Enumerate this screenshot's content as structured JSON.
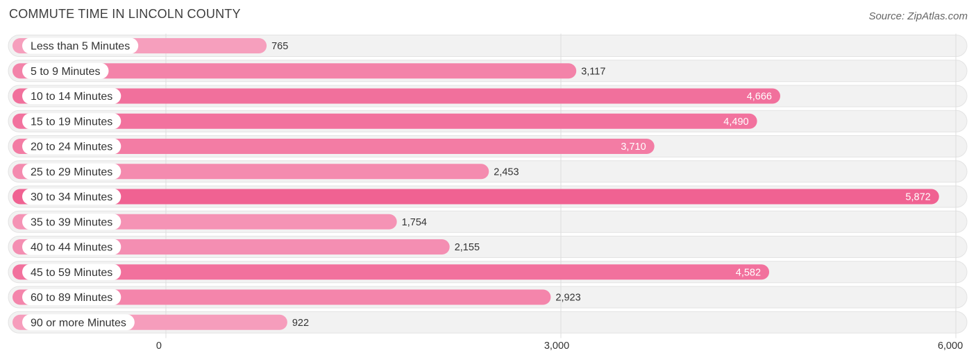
{
  "header": {
    "title": "COMMUTE TIME IN LINCOLN COUNTY",
    "source": "Source: ZipAtlas.com"
  },
  "chart_data": {
    "type": "bar",
    "orientation": "horizontal",
    "title": "COMMUTE TIME IN LINCOLN COUNTY",
    "categories": [
      "Less than 5 Minutes",
      "5 to 9 Minutes",
      "10 to 14 Minutes",
      "15 to 19 Minutes",
      "20 to 24 Minutes",
      "25 to 29 Minutes",
      "30 to 34 Minutes",
      "35 to 39 Minutes",
      "40 to 44 Minutes",
      "45 to 59 Minutes",
      "60 to 89 Minutes",
      "90 or more Minutes"
    ],
    "values": [
      765,
      3117,
      4666,
      4490,
      3710,
      2453,
      5872,
      1754,
      2155,
      4582,
      2923,
      922
    ],
    "value_labels": [
      "765",
      "3,117",
      "4,666",
      "4,490",
      "3,710",
      "2,453",
      "5,872",
      "1,754",
      "2,155",
      "4,582",
      "2,923",
      "922"
    ],
    "xlim": [
      0,
      6000
    ],
    "xticks": [
      0,
      3000,
      6000
    ],
    "xtick_labels": [
      "0",
      "3,000",
      "6,000"
    ],
    "grid": true,
    "colors": {
      "low": "#f7a8c4",
      "high": "#f06292",
      "track": "#f2f2f2"
    }
  }
}
